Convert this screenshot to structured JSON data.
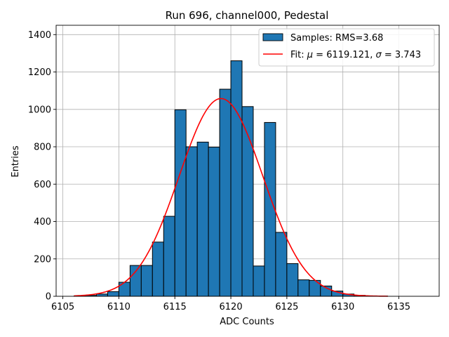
{
  "chart_data": {
    "type": "bar",
    "title": "Run 696, channel000, Pedestal",
    "xlabel": "ADC Counts",
    "ylabel": "Entries",
    "xlim": [
      6104.4,
      6138.6
    ],
    "ylim": [
      0,
      1450
    ],
    "xticks": [
      6105,
      6110,
      6115,
      6120,
      6125,
      6130,
      6135
    ],
    "yticks": [
      0,
      200,
      400,
      600,
      800,
      1000,
      1200,
      1400
    ],
    "grid": true,
    "legend_position": "top-right",
    "bar_color": "#1f77b4",
    "fit_color": "#ff0000",
    "histogram": {
      "name": "Samples: RMS=3.68",
      "bin_width": 1.0,
      "bins": [
        {
          "left": 6106,
          "count": 2
        },
        {
          "left": 6107,
          "count": 5
        },
        {
          "left": 6108,
          "count": 12
        },
        {
          "left": 6109,
          "count": 25
        },
        {
          "left": 6110,
          "count": 75
        },
        {
          "left": 6111,
          "count": 165
        },
        {
          "left": 6112,
          "count": 165
        },
        {
          "left": 6113,
          "count": 290
        },
        {
          "left": 6114,
          "count": 428
        },
        {
          "left": 6115,
          "count": 998
        },
        {
          "left": 6116,
          "count": 800
        },
        {
          "left": 6117,
          "count": 825
        },
        {
          "left": 6118,
          "count": 798
        },
        {
          "left": 6119,
          "count": 1108
        },
        {
          "left": 6120,
          "count": 1260
        },
        {
          "left": 6121,
          "count": 1015
        },
        {
          "left": 6122,
          "count": 162
        },
        {
          "left": 6123,
          "count": 930
        },
        {
          "left": 6124,
          "count": 342
        },
        {
          "left": 6125,
          "count": 175
        },
        {
          "left": 6126,
          "count": 88
        },
        {
          "left": 6127,
          "count": 85
        },
        {
          "left": 6128,
          "count": 55
        },
        {
          "left": 6129,
          "count": 28
        },
        {
          "left": 6130,
          "count": 12
        },
        {
          "left": 6131,
          "count": 5
        },
        {
          "left": 6132,
          "count": 2
        },
        {
          "left": 6133,
          "count": 1
        }
      ]
    },
    "fit": {
      "name_prefix": "Fit: ",
      "mu_symbol": "μ",
      "mu_value": " = 6119.121, ",
      "sigma_symbol": "σ",
      "sigma_value": " = 3.743",
      "mu": 6119.121,
      "sigma": 3.743,
      "amplitude": 1058,
      "x_range": [
        6106,
        6134
      ]
    }
  }
}
